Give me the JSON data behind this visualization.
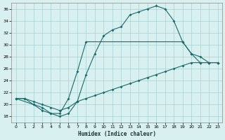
{
  "xlabel": "Humidex (Indice chaleur)",
  "bg_color": "#d8f0f0",
  "line_color": "#1a6b6b",
  "xlim": [
    -0.5,
    23.5
  ],
  "ylim": [
    17,
    37
  ],
  "yticks": [
    18,
    20,
    22,
    24,
    26,
    28,
    30,
    32,
    34,
    36
  ],
  "xticks": [
    0,
    1,
    2,
    3,
    4,
    5,
    6,
    7,
    8,
    9,
    10,
    11,
    12,
    13,
    14,
    15,
    16,
    17,
    18,
    19,
    20,
    21,
    22,
    23
  ],
  "curve1_x": [
    0,
    1,
    2,
    3,
    4,
    5,
    6,
    7,
    8,
    9,
    10,
    11,
    12,
    13,
    14,
    15,
    16,
    17,
    18,
    19,
    20,
    21,
    22,
    23
  ],
  "curve1_y": [
    21,
    21,
    20,
    19,
    18.5,
    18,
    18.5,
    20.5,
    25,
    28.5,
    31.5,
    32.5,
    33,
    35,
    35.5,
    36,
    36.5,
    36,
    34,
    30.5,
    28.5,
    27,
    27,
    27
  ],
  "curve2_x": [
    0,
    2,
    3,
    4,
    5,
    6,
    7,
    8,
    19,
    20,
    21,
    22,
    23
  ],
  "curve2_y": [
    21,
    20,
    19.5,
    18.5,
    18.5,
    21,
    25.5,
    30.5,
    30.5,
    28.5,
    28,
    27,
    27
  ],
  "curve3_x": [
    0,
    1,
    2,
    3,
    4,
    5,
    6,
    7,
    8,
    9,
    10,
    11,
    12,
    13,
    14,
    15,
    16,
    17,
    18,
    19,
    20,
    21,
    22,
    23
  ],
  "curve3_y": [
    21,
    21,
    20.5,
    20,
    19.5,
    19,
    19.5,
    20.5,
    21,
    21.5,
    22,
    22.5,
    23,
    23.5,
    24,
    24.5,
    25,
    25.5,
    26,
    26.5,
    27,
    27,
    27,
    27
  ]
}
